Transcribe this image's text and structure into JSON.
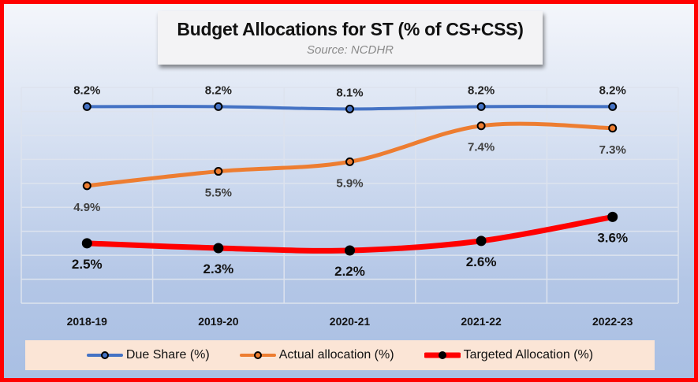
{
  "chart_data": {
    "type": "line",
    "title": "Budget Allocations for ST (% of CS+CSS)",
    "subtitle": "Source: NCDHR",
    "categories": [
      "2018-19",
      "2019-20",
      "2020-21",
      "2021-22",
      "2022-23"
    ],
    "ylim": [
      0,
      9
    ],
    "grid": true,
    "legend_position": "bottom",
    "series": [
      {
        "name": "Due Share (%)",
        "values": [
          8.2,
          8.2,
          8.1,
          8.2,
          8.2
        ],
        "labels": [
          "8.2%",
          "8.2%",
          "8.1%",
          "8.2%",
          "8.2%"
        ],
        "color": "#4472c4",
        "marker_fill": "#4472c4",
        "label_color": "#222222",
        "label_pos": "above"
      },
      {
        "name": "Actual allocation (%)",
        "values": [
          4.9,
          5.5,
          5.9,
          7.4,
          7.3
        ],
        "labels": [
          "4.9%",
          "5.5%",
          "5.9%",
          "7.4%",
          "7.3%"
        ],
        "color": "#ed7d31",
        "marker_fill": "#ed7d31",
        "label_color": "#404040",
        "label_pos": "below"
      },
      {
        "name": "Targeted Allocation (%)",
        "values": [
          2.5,
          2.3,
          2.2,
          2.6,
          3.6
        ],
        "labels": [
          "2.5%",
          "2.3%",
          "2.2%",
          "2.6%",
          "3.6%"
        ],
        "color": "#ff0000",
        "marker_fill": "#000000",
        "label_color": "#111111",
        "label_pos": "below"
      }
    ]
  }
}
